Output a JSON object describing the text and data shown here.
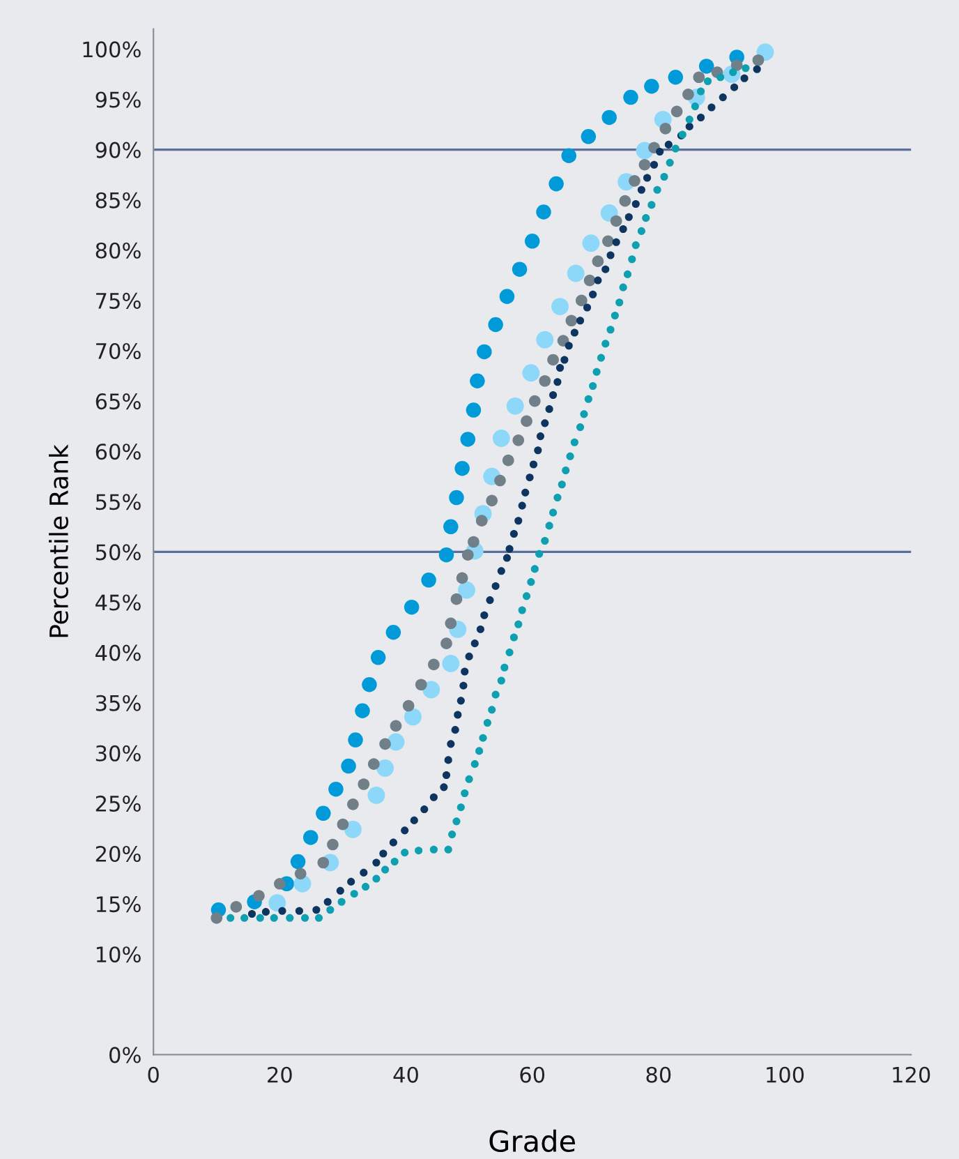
{
  "chart_data": {
    "type": "scatter",
    "xlabel": "Grade",
    "ylabel": "Percentile Rank",
    "marker": "circle",
    "grid": false,
    "xlim": [
      0,
      120
    ],
    "xticks": [
      0,
      20,
      40,
      60,
      80,
      100,
      120
    ],
    "ylim": [
      0,
      102
    ],
    "yticks": [
      {
        "value": 0,
        "label": "0%"
      },
      {
        "value": 10,
        "label": "10%"
      },
      {
        "value": 15,
        "label": "15%"
      },
      {
        "value": 20,
        "label": "20%"
      },
      {
        "value": 25,
        "label": "25%"
      },
      {
        "value": 30,
        "label": "30%"
      },
      {
        "value": 35,
        "label": "35%"
      },
      {
        "value": 40,
        "label": "40%"
      },
      {
        "value": 45,
        "label": "45%"
      },
      {
        "value": 50,
        "label": "50%"
      },
      {
        "value": 55,
        "label": "55%"
      },
      {
        "value": 60,
        "label": "60%"
      },
      {
        "value": 65,
        "label": "65%"
      },
      {
        "value": 70,
        "label": "70%"
      },
      {
        "value": 75,
        "label": "75%"
      },
      {
        "value": 80,
        "label": "80%"
      },
      {
        "value": 85,
        "label": "85%"
      },
      {
        "value": 90,
        "label": "90%"
      },
      {
        "value": 95,
        "label": "95%"
      },
      {
        "value": 100,
        "label": "100%"
      }
    ],
    "ref_lines": [
      {
        "axis": "y",
        "value": 90,
        "label": null,
        "color": "#5b6f9c"
      },
      {
        "axis": "y",
        "value": 50,
        "label": null,
        "color": "#5b6f9c"
      }
    ],
    "series": [
      {
        "color": "#009ad9",
        "x": [
          10.3,
          16.0,
          21.1,
          22.9,
          24.9,
          26.9,
          28.9,
          30.9,
          32.0,
          33.1,
          34.2,
          35.6,
          38.0,
          40.9,
          43.6,
          46.4,
          47.1,
          48.0,
          48.9,
          49.8,
          50.7,
          51.3,
          52.4,
          54.2,
          56.0,
          58.0,
          60.0,
          61.8,
          63.8,
          65.8,
          68.9,
          72.2,
          75.6,
          78.9,
          82.7,
          87.6,
          92.4
        ],
        "values": [
          14.4,
          15.2,
          17.0,
          19.2,
          21.6,
          24.0,
          26.4,
          28.7,
          31.3,
          34.2,
          36.8,
          39.5,
          42.0,
          44.5,
          47.2,
          49.7,
          52.5,
          55.4,
          58.3,
          61.2,
          64.1,
          67.0,
          69.9,
          72.6,
          75.4,
          78.1,
          80.9,
          83.8,
          86.6,
          89.4,
          91.3,
          93.2,
          95.2,
          96.3,
          97.2,
          98.3,
          99.2
        ]
      },
      {
        "color": "#8dd8f8",
        "x": [
          19.6,
          23.6,
          28.0,
          31.6,
          35.3,
          36.7,
          38.4,
          41.1,
          44.0,
          47.1,
          48.2,
          49.6,
          50.9,
          52.2,
          53.6,
          55.1,
          57.3,
          59.8,
          62.0,
          64.4,
          66.9,
          69.3,
          72.2,
          74.9,
          77.8,
          80.7,
          86.0,
          91.6,
          96.9
        ],
        "values": [
          15.1,
          17.0,
          19.1,
          22.4,
          25.8,
          28.5,
          31.1,
          33.6,
          36.3,
          38.9,
          42.3,
          46.2,
          50.1,
          53.8,
          57.5,
          61.3,
          64.5,
          67.8,
          71.1,
          74.4,
          77.7,
          80.7,
          83.7,
          86.8,
          89.9,
          93.0,
          95.2,
          97.5,
          99.7
        ]
      },
      {
        "color": "#717f89",
        "x": [
          10.0,
          13.1,
          16.7,
          20.0,
          23.3,
          26.9,
          28.4,
          30.0,
          31.6,
          33.3,
          34.9,
          36.7,
          38.4,
          40.4,
          42.4,
          44.4,
          46.4,
          47.1,
          48.0,
          48.9,
          49.8,
          50.7,
          52.0,
          53.6,
          54.9,
          56.2,
          57.8,
          59.1,
          60.4,
          62.0,
          63.3,
          64.9,
          66.2,
          67.8,
          69.1,
          70.4,
          72.0,
          73.3,
          74.7,
          76.2,
          77.8,
          79.3,
          81.1,
          82.9,
          84.7,
          86.4,
          89.3,
          92.4,
          95.8
        ],
        "values": [
          13.6,
          14.7,
          15.8,
          17.0,
          18.0,
          19.1,
          20.9,
          22.9,
          24.9,
          26.9,
          28.9,
          30.9,
          32.7,
          34.7,
          36.8,
          38.8,
          40.9,
          42.9,
          45.3,
          47.4,
          49.7,
          51.0,
          53.1,
          55.1,
          57.1,
          59.1,
          61.1,
          63.0,
          65.0,
          67.0,
          69.1,
          71.0,
          73.0,
          75.0,
          77.0,
          78.9,
          80.9,
          82.9,
          84.9,
          86.9,
          88.5,
          90.2,
          92.1,
          93.8,
          95.5,
          97.2,
          97.7,
          98.4,
          98.9
        ]
      },
      {
        "color": "#0d3560",
        "x": [
          15.6,
          17.8,
          20.4,
          23.1,
          25.8,
          27.6,
          29.6,
          31.3,
          33.3,
          35.3,
          36.4,
          38.0,
          39.8,
          41.3,
          42.9,
          44.4,
          46.0,
          46.4,
          46.7,
          47.1,
          47.8,
          48.2,
          48.7,
          49.1,
          49.3,
          50.0,
          50.9,
          51.8,
          52.4,
          53.3,
          54.2,
          55.1,
          56.0,
          56.4,
          57.1,
          57.8,
          58.4,
          58.9,
          59.6,
          60.2,
          60.9,
          61.3,
          62.0,
          62.7,
          63.3,
          64.0,
          64.4,
          65.1,
          65.8,
          66.7,
          67.6,
          68.7,
          69.6,
          70.4,
          71.6,
          72.4,
          73.3,
          74.4,
          75.3,
          76.4,
          77.3,
          78.2,
          79.3,
          80.2,
          81.6,
          83.6,
          84.9,
          86.7,
          88.4,
          90.2,
          92.0,
          93.6,
          95.6
        ],
        "values": [
          14.0,
          14.2,
          14.3,
          14.3,
          14.4,
          15.2,
          16.3,
          17.2,
          18.1,
          19.1,
          20.0,
          21.1,
          22.3,
          23.3,
          24.4,
          25.6,
          26.6,
          27.8,
          29.3,
          30.9,
          32.3,
          33.8,
          35.2,
          36.7,
          38.1,
          39.6,
          40.9,
          42.3,
          43.7,
          45.2,
          46.6,
          48.1,
          49.4,
          50.3,
          51.8,
          53.1,
          54.6,
          55.9,
          57.4,
          58.7,
          60.1,
          61.5,
          62.8,
          64.2,
          65.6,
          66.9,
          68.3,
          69.1,
          70.5,
          71.8,
          73.0,
          74.3,
          75.6,
          77.0,
          78.1,
          79.5,
          80.8,
          82.1,
          83.3,
          84.6,
          86.0,
          87.2,
          88.5,
          89.8,
          90.5,
          91.4,
          92.3,
          93.2,
          94.2,
          95.2,
          96.2,
          97.1,
          98.0
        ]
      },
      {
        "color": "#0e9fb1",
        "x": [
          12.2,
          14.4,
          16.9,
          19.1,
          21.6,
          24.0,
          26.2,
          28.0,
          29.8,
          31.8,
          33.6,
          35.3,
          36.7,
          38.2,
          39.8,
          42.0,
          44.4,
          46.7,
          47.3,
          48.0,
          48.7,
          49.3,
          50.0,
          50.9,
          51.6,
          52.2,
          52.9,
          53.6,
          54.2,
          55.1,
          55.6,
          56.4,
          57.1,
          57.8,
          58.4,
          59.1,
          59.8,
          60.4,
          61.1,
          62.0,
          62.7,
          63.3,
          64.0,
          64.7,
          65.3,
          66.0,
          66.7,
          67.6,
          68.2,
          68.9,
          69.6,
          70.2,
          70.9,
          71.6,
          72.4,
          73.1,
          73.8,
          74.4,
          75.1,
          75.8,
          76.4,
          77.3,
          78.0,
          78.9,
          79.8,
          80.9,
          81.8,
          82.7,
          83.8,
          84.9,
          85.8,
          86.7,
          87.8,
          89.8,
          91.8,
          93.8
        ],
        "values": [
          13.6,
          13.6,
          13.6,
          13.6,
          13.6,
          13.6,
          13.6,
          14.4,
          15.2,
          16.0,
          16.7,
          17.5,
          18.4,
          19.2,
          20.1,
          20.3,
          20.4,
          20.4,
          21.9,
          23.2,
          24.6,
          26.0,
          27.4,
          28.9,
          30.2,
          31.5,
          33.0,
          34.3,
          35.8,
          37.2,
          38.5,
          40.0,
          41.5,
          42.8,
          44.2,
          45.6,
          47.0,
          48.3,
          49.8,
          51.1,
          52.6,
          53.9,
          55.4,
          56.7,
          58.1,
          59.5,
          60.9,
          62.4,
          63.7,
          65.2,
          66.5,
          67.9,
          69.3,
          70.7,
          72.1,
          73.5,
          74.8,
          76.3,
          77.6,
          79.1,
          80.5,
          81.9,
          83.2,
          84.5,
          86.0,
          87.3,
          88.7,
          90.1,
          91.5,
          93.0,
          94.3,
          95.8,
          96.8,
          97.2,
          97.7,
          98.1
        ]
      }
    ]
  }
}
